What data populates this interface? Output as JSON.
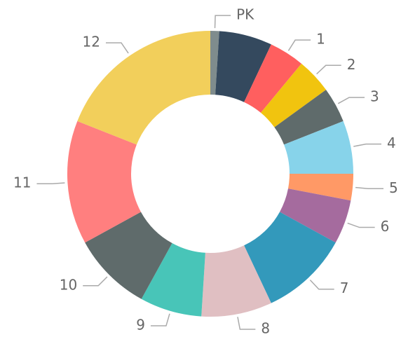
{
  "chart_data": {
    "type": "donut",
    "categories": [
      "PK",
      null,
      "1",
      "2",
      "3",
      "4",
      "5",
      "6",
      "7",
      "8",
      "9",
      "10",
      "11",
      "12"
    ],
    "values": [
      1,
      6,
      4,
      4,
      4,
      6,
      3,
      5,
      10,
      8,
      7,
      9,
      14,
      19
    ],
    "colors": [
      "#7f8c8d",
      "#34495e",
      "#ff5f5f",
      "#f1c40f",
      "#5f6b6b",
      "#87d3ea",
      "#ff9966",
      "#a56b9e",
      "#3399bb",
      "#e0bfc2",
      "#48c5b8",
      "#5f6b6b",
      "#ff7f7f",
      "#f2cf5b"
    ]
  }
}
